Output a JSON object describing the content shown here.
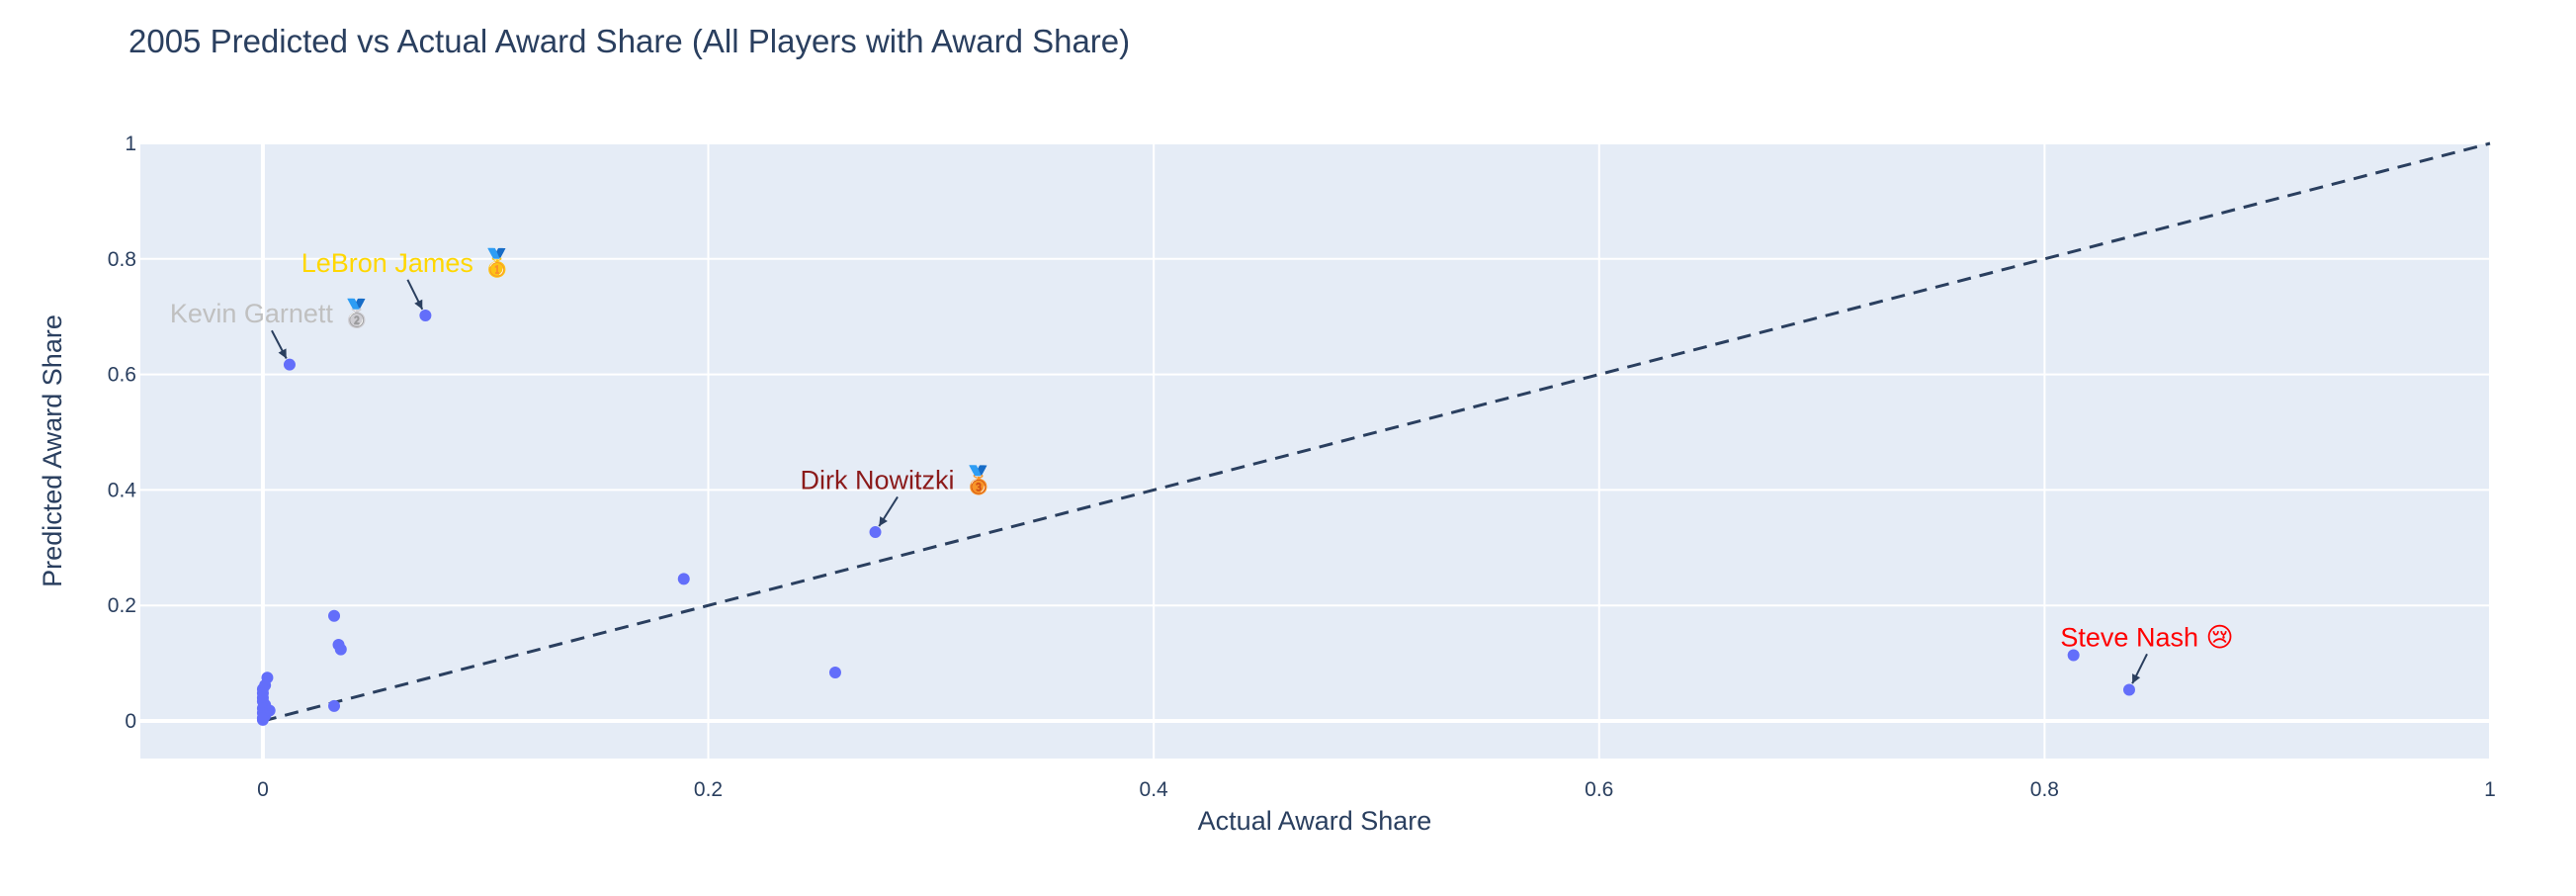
{
  "chart_data": {
    "type": "scatter",
    "title": "2005 Predicted vs Actual Award Share (All Players with Award Share)",
    "xlabel": "Actual Award Share",
    "ylabel": "Predicted Award Share",
    "xlim": [
      -0.055,
      1.0
    ],
    "ylim": [
      -0.065,
      1.0
    ],
    "xticks": [
      0,
      0.2,
      0.4,
      0.6,
      0.8,
      1
    ],
    "yticks": [
      0,
      0.2,
      0.4,
      0.6,
      0.8,
      1
    ],
    "grid": true,
    "colors": {
      "marker": "#636efa",
      "plot_bg": "#e5ecf6",
      "grid": "#ffffff",
      "diagonal": "#2a3f5f",
      "text": "#2a3f5f"
    },
    "reference_line": {
      "x": [
        0,
        1
      ],
      "y": [
        0,
        1
      ],
      "style": "dashed"
    },
    "points": [
      {
        "x": 0.838,
        "y": 0.054
      },
      {
        "x": 0.813,
        "y": 0.114
      },
      {
        "x": 0.275,
        "y": 0.327
      },
      {
        "x": 0.257,
        "y": 0.084
      },
      {
        "x": 0.189,
        "y": 0.246
      },
      {
        "x": 0.073,
        "y": 0.702
      },
      {
        "x": 0.012,
        "y": 0.617
      },
      {
        "x": 0.032,
        "y": 0.182
      },
      {
        "x": 0.034,
        "y": 0.132
      },
      {
        "x": 0.035,
        "y": 0.124
      },
      {
        "x": 0.032,
        "y": 0.026
      },
      {
        "x": 0.002,
        "y": 0.075
      },
      {
        "x": 0.001,
        "y": 0.062
      },
      {
        "x": 0.0,
        "y": 0.055
      },
      {
        "x": 0.0,
        "y": 0.048
      },
      {
        "x": 0.0,
        "y": 0.04
      },
      {
        "x": 0.0,
        "y": 0.034
      },
      {
        "x": 0.001,
        "y": 0.028
      },
      {
        "x": 0.0,
        "y": 0.022
      },
      {
        "x": 0.003,
        "y": 0.018
      },
      {
        "x": 0.0,
        "y": 0.014
      },
      {
        "x": 0.001,
        "y": 0.009
      },
      {
        "x": 0.0,
        "y": 0.005
      },
      {
        "x": 0.0,
        "y": 0.002
      }
    ],
    "annotations": [
      {
        "text": "LeBron James",
        "emoji": "🥇",
        "x": 0.073,
        "y": 0.702,
        "color": "#ffd700",
        "ax": 0.065,
        "ay": 0.764
      },
      {
        "text": "Kevin Garnett",
        "emoji": "🥈",
        "x": 0.012,
        "y": 0.617,
        "color": "#c0c0c0",
        "ax": 0.004,
        "ay": 0.676
      },
      {
        "text": "Dirk Nowitzki",
        "emoji": "🥉",
        "x": 0.275,
        "y": 0.327,
        "color": "#8b1a1a",
        "ax": 0.285,
        "ay": 0.388
      },
      {
        "text": "Steve Nash",
        "emoji": "😢",
        "x": 0.838,
        "y": 0.054,
        "color": "#ff0000",
        "ax": 0.846,
        "ay": 0.116
      }
    ]
  }
}
